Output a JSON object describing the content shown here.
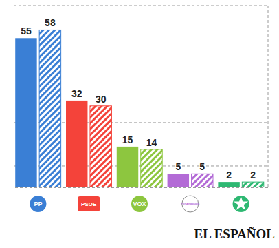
{
  "chart_data": {
    "type": "bar",
    "categories": [
      "PP",
      "PSOE",
      "VOX",
      "Por Andalucía",
      null
    ],
    "series": [
      {
        "values": [
          55,
          32,
          15,
          5,
          2
        ],
        "colors": [
          "#3a7fd5",
          "#f4433a",
          "#8dc63f",
          "#b36bd6",
          "#2eb872"
        ]
      },
      {
        "values": [
          58,
          30,
          14,
          5,
          2
        ],
        "colors": [
          "#3a7fd5",
          "#f4433a",
          "#8dc63f",
          "#b36bd6",
          "#2eb872"
        ],
        "line_style": "hatched"
      }
    ],
    "ylim": [
      0,
      67
    ],
    "yticks": [
      8,
      24
    ],
    "grid": true,
    "data_labels": true,
    "tick_labels": "x",
    "source": "EL ESPAÑOL"
  }
}
